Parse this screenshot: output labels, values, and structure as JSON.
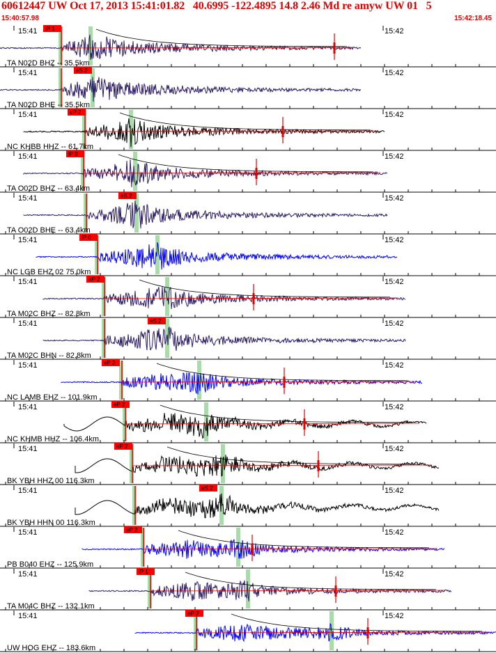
{
  "header": {
    "title": "60612447 UW Oct 17, 2013 15:41:01.82   40.6995 -122.4895 14.8 2.46 Md re amyw UW 01   5",
    "time_start": "15:40:57.98",
    "time_end": "15:42:18.45"
  },
  "colors": {
    "header_text": "#e00000",
    "pick_box": "#ff0000",
    "pick_line": "#e00000",
    "phase_band": "#a8dca8",
    "axis": "#000000",
    "trace_navy": "#2b1a66",
    "trace_blue": "#0000ff",
    "trace_black": "#000000"
  },
  "panels": [
    {
      "tick_left": "15:41",
      "tick_right": "15:42",
      "label": "TA N02D BHZ -- 35.5km",
      "pick": "iP 1",
      "trace_color": "navy",
      "coda_pick": true
    },
    {
      "tick_left": "15:41",
      "tick_right": "15:42",
      "label": "TA N02D BHE -- 35.5km",
      "pick": "eS 2",
      "trace_color": "navy",
      "coda_pick": false
    },
    {
      "tick_left": "15:41",
      "tick_right": "15:42",
      "label": "NC KHBB HHZ -- 61.7km",
      "pick": "eP 2",
      "trace_color": "black",
      "coda_pick": true
    },
    {
      "tick_left": "15:41",
      "tick_right": "15:42",
      "label": "TA O02D BHZ -- 63.4km",
      "pick": "iP 0",
      "trace_color": "navy",
      "coda_pick": true
    },
    {
      "tick_left": "15:41",
      "tick_right": "15:42",
      "label": "TA O02D BHE -- 63.4km",
      "pick": "eS 2",
      "trace_color": "navy",
      "coda_pick": false
    },
    {
      "tick_left": "15:41",
      "tick_right": "15:42",
      "label": "NC LGB EHZ 02 75.0km",
      "pick": "iP 0",
      "trace_color": "blue",
      "coda_pick": true
    },
    {
      "tick_left": "15:41",
      "tick_right": "15:42",
      "label": "TA M02C BHZ -- 82.8km",
      "pick": "eP 2",
      "trace_color": "navy",
      "coda_pick": true
    },
    {
      "tick_left": "15:41",
      "tick_right": "15:42",
      "label": "TA M02C BHN -- 82.8km",
      "pick": "eS 2",
      "trace_color": "navy",
      "coda_pick": false
    },
    {
      "tick_left": "15:41",
      "tick_right": "15:42",
      "label": "NC LAMB EHZ -- 101.9km",
      "pick": "eP 2",
      "trace_color": "blue",
      "coda_pick": true
    },
    {
      "tick_left": "15:41",
      "tick_right": "15:42",
      "label": "NC KHMB HHZ -- 106.4km",
      "pick": "eP 2",
      "trace_color": "black",
      "coda_pick": true
    },
    {
      "tick_left": "15:41",
      "tick_right": "15:42",
      "label": "BK YBH HHZ 00 116.3km",
      "pick": "eP 2",
      "trace_color": "black",
      "coda_pick": true
    },
    {
      "tick_left": "15:41",
      "tick_right": "15:42",
      "label": "BK YBH HHN 00 116.3km",
      "pick": "eS 2",
      "trace_color": "black",
      "coda_pick": false
    },
    {
      "tick_left": "15:41",
      "tick_right": "15:42",
      "label": "PB B040 EHZ -- 125.9km",
      "pick": "eP 2",
      "trace_color": "blue",
      "coda_pick": true
    },
    {
      "tick_left": "15:41",
      "tick_right": "15:42",
      "label": "TA M04C BHZ -- 132.1km",
      "pick": "iP 1",
      "trace_color": "navy",
      "coda_pick": true
    },
    {
      "tick_left": "15:41",
      "tick_right": "15:42",
      "label": "UW HOG EHZ -- 183.6km",
      "pick": "eP 2",
      "trace_color": "blue",
      "coda_pick": true
    }
  ]
}
